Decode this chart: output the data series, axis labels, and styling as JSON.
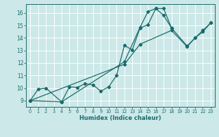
{
  "xlabel": "Humidex (Indice chaleur)",
  "xlim": [
    -0.5,
    23.5
  ],
  "ylim": [
    8.5,
    16.7
  ],
  "xticks": [
    0,
    1,
    2,
    3,
    4,
    5,
    6,
    7,
    8,
    9,
    10,
    11,
    12,
    13,
    14,
    15,
    16,
    17,
    18,
    19,
    20,
    21,
    22,
    23
  ],
  "yticks": [
    9,
    10,
    11,
    12,
    13,
    14,
    15,
    16
  ],
  "bg_color": "#cce8e8",
  "grid_color": "#ffffff",
  "line_color": "#1a6b6b",
  "lines": [
    {
      "x": [
        0,
        1,
        2,
        4,
        5,
        6,
        7,
        8,
        9,
        10,
        11,
        12,
        13,
        14,
        15,
        16,
        17,
        18
      ],
      "y": [
        9.0,
        9.9,
        10.0,
        8.9,
        10.1,
        10.05,
        10.35,
        10.25,
        9.75,
        10.1,
        11.0,
        13.4,
        13.05,
        14.8,
        15.05,
        16.35,
        16.35,
        14.8
      ]
    },
    {
      "x": [
        0,
        4,
        12,
        14,
        15,
        16,
        17,
        18,
        20,
        21,
        22,
        23
      ],
      "y": [
        9.0,
        8.9,
        12.1,
        14.85,
        16.1,
        16.35,
        15.8,
        14.8,
        13.35,
        14.0,
        14.6,
        15.2
      ]
    },
    {
      "x": [
        0,
        12,
        14,
        18,
        20,
        21,
        22,
        23
      ],
      "y": [
        9.0,
        11.9,
        13.5,
        14.6,
        13.3,
        14.0,
        14.5,
        15.2
      ]
    }
  ]
}
